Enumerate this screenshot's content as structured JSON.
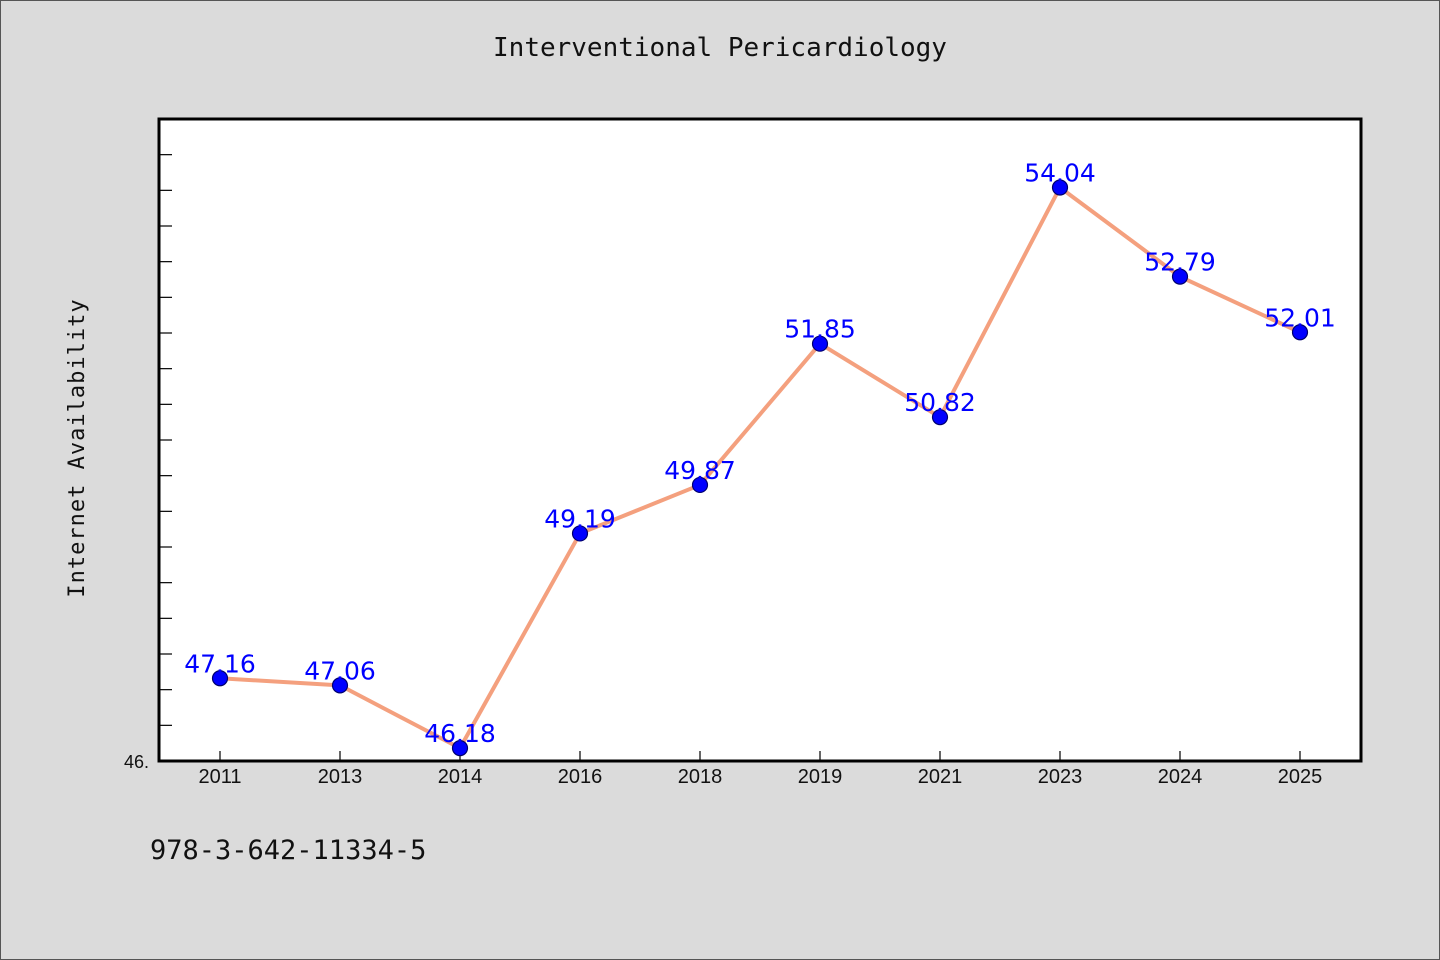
{
  "chart_data": {
    "type": "line",
    "title": "Interventional Pericardiology",
    "xlabel": "",
    "ylabel": "Internet Availability",
    "categories": [
      "2011",
      "2013",
      "2014",
      "2016",
      "2018",
      "2019",
      "2021",
      "2023",
      "2024",
      "2025"
    ],
    "series": [
      {
        "values": [
          47.16,
          47.06,
          46.18,
          49.19,
          49.87,
          51.85,
          50.82,
          54.04,
          52.79,
          52.01
        ],
        "labels": [
          "47.16",
          "47.06",
          "46.18",
          "49.19",
          "49.87",
          "51.85",
          "50.82",
          "54.04",
          "52.79",
          "52.01"
        ]
      }
    ],
    "ylim": [
      46.0,
      55.0
    ],
    "y_tick_label": "46.",
    "grid": false,
    "colors": {
      "line": "#f4a07e",
      "marker": "#0000ff",
      "marker_edge": "#00006e",
      "data_label": "#0000ff",
      "plot_bg": "#ffffff",
      "figure_bg": "#dbdbdb"
    }
  },
  "footer": {
    "code": "978-3-642-11334-5"
  }
}
